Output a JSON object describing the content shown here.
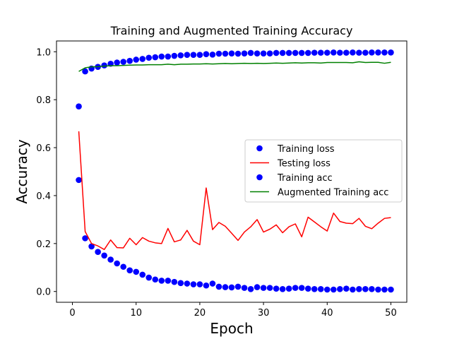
{
  "chart_data": {
    "type": "line",
    "title": "Training and Augmented Training Accuracy",
    "xlabel": "Epoch",
    "ylabel": "Accuracy",
    "xlim": [
      -2.5,
      52.5
    ],
    "ylim": [
      -0.045,
      1.045
    ],
    "xticks": [
      0,
      10,
      20,
      30,
      40,
      50
    ],
    "yticks": [
      0.0,
      0.2,
      0.4,
      0.6,
      0.8,
      1.0
    ],
    "ytick_labels": [
      "0.0",
      "0.2",
      "0.4",
      "0.6",
      "0.8",
      "1.0"
    ],
    "grid": false,
    "legend_position": "center-right",
    "x": [
      1,
      2,
      3,
      4,
      5,
      6,
      7,
      8,
      9,
      10,
      11,
      12,
      13,
      14,
      15,
      16,
      17,
      18,
      19,
      20,
      21,
      22,
      23,
      24,
      25,
      26,
      27,
      28,
      29,
      30,
      31,
      32,
      33,
      34,
      35,
      36,
      37,
      38,
      39,
      40,
      41,
      42,
      43,
      44,
      45,
      46,
      47,
      48,
      49,
      50
    ],
    "series": [
      {
        "name": "Training loss",
        "style": "markers",
        "color": "#0000ff",
        "values": [
          0.465,
          0.222,
          0.188,
          0.165,
          0.15,
          0.133,
          0.117,
          0.103,
          0.088,
          0.082,
          0.07,
          0.058,
          0.05,
          0.045,
          0.045,
          0.04,
          0.035,
          0.033,
          0.03,
          0.03,
          0.025,
          0.033,
          0.02,
          0.018,
          0.017,
          0.02,
          0.015,
          0.01,
          0.018,
          0.015,
          0.015,
          0.012,
          0.01,
          0.012,
          0.015,
          0.015,
          0.012,
          0.01,
          0.01,
          0.008,
          0.008,
          0.01,
          0.012,
          0.008,
          0.01,
          0.01,
          0.01,
          0.008,
          0.008,
          0.008
        ]
      },
      {
        "name": "Testing loss",
        "style": "line",
        "color": "#ff0000",
        "values": [
          0.668,
          0.25,
          0.2,
          0.19,
          0.175,
          0.215,
          0.183,
          0.182,
          0.222,
          0.195,
          0.225,
          0.21,
          0.203,
          0.2,
          0.263,
          0.207,
          0.215,
          0.255,
          0.21,
          0.195,
          0.432,
          0.258,
          0.288,
          0.272,
          0.243,
          0.213,
          0.248,
          0.27,
          0.3,
          0.248,
          0.26,
          0.278,
          0.245,
          0.27,
          0.282,
          0.228,
          0.31,
          0.29,
          0.27,
          0.252,
          0.327,
          0.292,
          0.285,
          0.283,
          0.305,
          0.272,
          0.262,
          0.285,
          0.305,
          0.308
        ]
      },
      {
        "name": "Training acc",
        "style": "markers",
        "color": "#0000ff",
        "values": [
          0.772,
          0.918,
          0.93,
          0.937,
          0.943,
          0.95,
          0.955,
          0.958,
          0.962,
          0.967,
          0.97,
          0.975,
          0.977,
          0.98,
          0.98,
          0.983,
          0.985,
          0.987,
          0.987,
          0.987,
          0.99,
          0.988,
          0.992,
          0.992,
          0.993,
          0.992,
          0.993,
          0.995,
          0.993,
          0.993,
          0.993,
          0.995,
          0.995,
          0.995,
          0.995,
          0.995,
          0.995,
          0.996,
          0.996,
          0.996,
          0.997,
          0.996,
          0.996,
          0.997,
          0.996,
          0.996,
          0.997,
          0.997,
          0.997,
          0.997
        ]
      },
      {
        "name": "Augmented Training acc",
        "style": "line",
        "color": "#008000",
        "values": [
          0.918,
          0.933,
          0.937,
          0.938,
          0.94,
          0.942,
          0.942,
          0.943,
          0.944,
          0.945,
          0.945,
          0.946,
          0.946,
          0.946,
          0.948,
          0.946,
          0.948,
          0.948,
          0.949,
          0.949,
          0.95,
          0.949,
          0.95,
          0.951,
          0.95,
          0.951,
          0.952,
          0.951,
          0.952,
          0.951,
          0.952,
          0.953,
          0.952,
          0.953,
          0.954,
          0.953,
          0.954,
          0.954,
          0.953,
          0.955,
          0.955,
          0.955,
          0.955,
          0.954,
          0.958,
          0.955,
          0.956,
          0.956,
          0.952,
          0.956
        ]
      }
    ]
  }
}
